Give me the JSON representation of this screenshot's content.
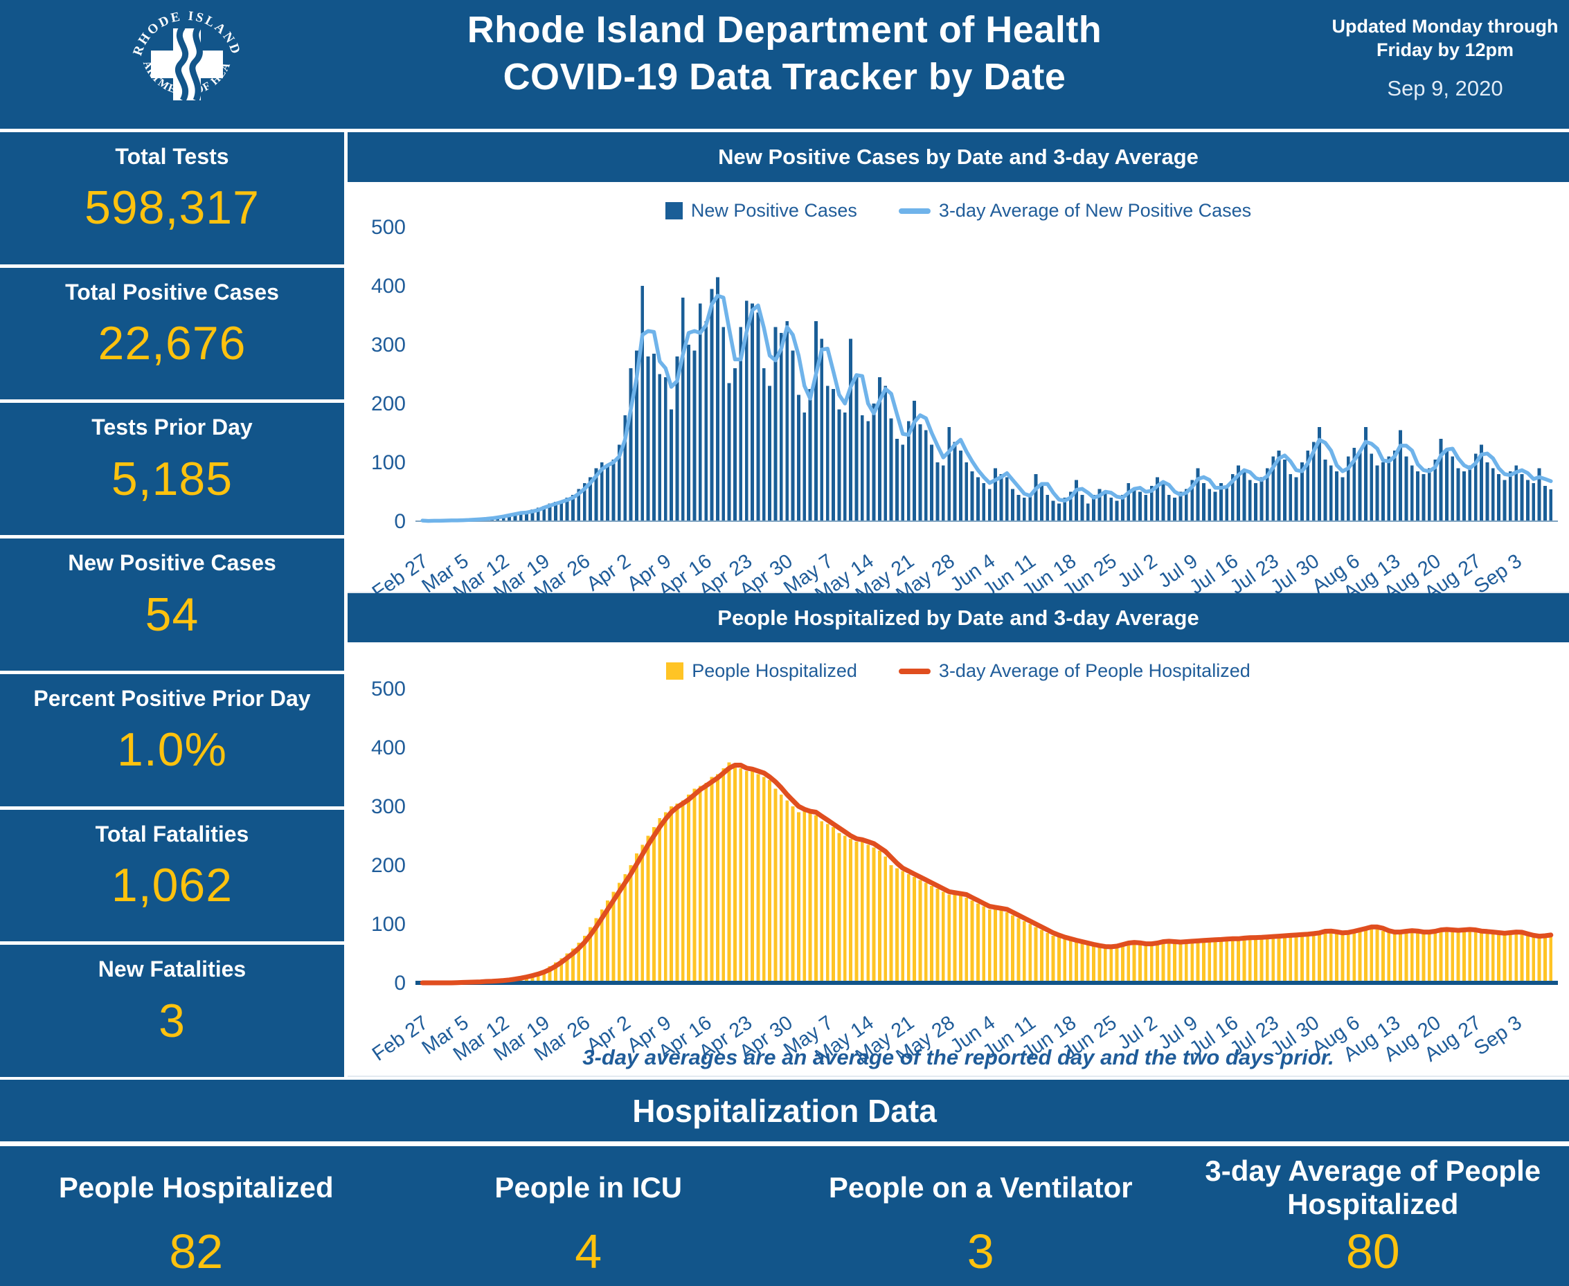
{
  "header": {
    "title_line1": "Rhode Island Department of Health",
    "title_line2": "COVID-19 Data Tracker by Date",
    "updated_note": "Updated Monday through Friday by 12pm",
    "date": "Sep 9, 2020",
    "logo": {
      "ring_top": "RHODE ISLAND",
      "ring_bottom": "DEPARTMENT OF HEALTH"
    }
  },
  "sidebar": {
    "cards": [
      {
        "label": "Total Tests",
        "value": "598,317"
      },
      {
        "label": "Total Positive Cases",
        "value": "22,676"
      },
      {
        "label": "Tests Prior Day",
        "value": "5,185"
      },
      {
        "label": "New Positive Cases",
        "value": "54"
      },
      {
        "label": "Percent Positive Prior Day",
        "value": "1.0%"
      },
      {
        "label": "Total Fatalities",
        "value": "1,062"
      },
      {
        "label": "New Fatalities",
        "value": "3"
      }
    ]
  },
  "chart_data": [
    {
      "type": "bar",
      "title": "New Positive Cases by Date and 3-day Average",
      "ylim": [
        0,
        500
      ],
      "yticks": [
        0,
        100,
        200,
        300,
        400,
        500
      ],
      "grid": false,
      "legend_position": "top-center",
      "x_tick_interval_days": 7,
      "x_tick_labels": [
        "Feb 27",
        "Mar 5",
        "Mar 12",
        "Mar 19",
        "Mar 26",
        "Apr 2",
        "Apr 9",
        "Apr 16",
        "Apr 23",
        "Apr 30",
        "May 7",
        "May 14",
        "May 21",
        "May 28",
        "Jun 4",
        "Jun 11",
        "Jun 18",
        "Jun 25",
        "Jul 2",
        "Jul 9",
        "Jul 16",
        "Jul 23",
        "Jul 30",
        "Aug 6",
        "Aug 13",
        "Aug 20",
        "Aug 27",
        "Sep 3"
      ],
      "axis_text_color": "#1F5C99",
      "baseline": {
        "color": "#7FA3C0",
        "width": 2
      },
      "series": [
        {
          "name": "New Positive Cases",
          "type": "bar",
          "color": "#1A5E97",
          "values": [
            1,
            0,
            1,
            1,
            1,
            2,
            1,
            2,
            3,
            3,
            4,
            5,
            6,
            8,
            10,
            12,
            14,
            16,
            14,
            20,
            23,
            26,
            30,
            33,
            35,
            40,
            45,
            55,
            65,
            75,
            90,
            100,
            95,
            105,
            130,
            180,
            260,
            290,
            400,
            280,
            285,
            250,
            245,
            190,
            280,
            380,
            300,
            290,
            370,
            340,
            395,
            415,
            330,
            235,
            260,
            330,
            375,
            370,
            355,
            260,
            230,
            330,
            320,
            340,
            290,
            215,
            185,
            225,
            340,
            310,
            230,
            225,
            190,
            185,
            310,
            250,
            180,
            170,
            200,
            245,
            230,
            175,
            140,
            130,
            170,
            205,
            165,
            155,
            130,
            100,
            95,
            160,
            135,
            120,
            100,
            85,
            75,
            65,
            55,
            90,
            80,
            75,
            55,
            45,
            40,
            45,
            80,
            65,
            45,
            35,
            30,
            40,
            50,
            70,
            45,
            30,
            45,
            55,
            50,
            40,
            35,
            45,
            65,
            55,
            50,
            45,
            60,
            75,
            65,
            45,
            40,
            50,
            55,
            70,
            90,
            65,
            55,
            50,
            65,
            60,
            80,
            95,
            85,
            70,
            65,
            75,
            90,
            110,
            120,
            105,
            80,
            75,
            100,
            120,
            135,
            160,
            105,
            95,
            85,
            75,
            110,
            125,
            120,
            160,
            115,
            95,
            100,
            110,
            120,
            155,
            110,
            95,
            85,
            80,
            90,
            105,
            140,
            120,
            110,
            90,
            85,
            95,
            115,
            130,
            100,
            90,
            80,
            70,
            85,
            95,
            80,
            70,
            65,
            90,
            60,
            54
          ]
        },
        {
          "name": "3-day Average of New Positive Cases",
          "type": "line",
          "color": "#6FB3EA",
          "width": 5.5,
          "derivation": "average of the reported day and the two days prior"
        }
      ]
    },
    {
      "type": "bar",
      "title": "People Hospitalized by Date and 3-day Average",
      "ylim": [
        0,
        500
      ],
      "yticks": [
        0,
        100,
        200,
        300,
        400,
        500
      ],
      "grid": false,
      "legend_position": "top-center",
      "x_tick_interval_days": 7,
      "x_tick_labels": [
        "Feb 27",
        "Mar 5",
        "Mar 12",
        "Mar 19",
        "Mar 26",
        "Apr 2",
        "Apr 9",
        "Apr 16",
        "Apr 23",
        "Apr 30",
        "May 7",
        "May 14",
        "May 21",
        "May 28",
        "Jun 4",
        "Jun 11",
        "Jun 18",
        "Jun 25",
        "Jul 2",
        "Jul 9",
        "Jul 16",
        "Jul 23",
        "Jul 30",
        "Aug 6",
        "Aug 13",
        "Aug 20",
        "Aug 27",
        "Sep 3"
      ],
      "axis_text_color": "#1F5C99",
      "baseline": {
        "color": "#12558A",
        "width": 6
      },
      "series": [
        {
          "name": "People Hospitalized",
          "type": "bar",
          "color": "#FFC425",
          "values": [
            0,
            0,
            0,
            0,
            0,
            0,
            1,
            1,
            1,
            2,
            2,
            3,
            3,
            4,
            5,
            6,
            8,
            10,
            12,
            15,
            18,
            22,
            28,
            35,
            42,
            50,
            58,
            68,
            80,
            95,
            110,
            125,
            140,
            155,
            170,
            185,
            200,
            220,
            235,
            250,
            265,
            280,
            290,
            300,
            305,
            310,
            320,
            330,
            335,
            340,
            350,
            355,
            365,
            375,
            370,
            365,
            360,
            365,
            355,
            350,
            345,
            330,
            320,
            310,
            300,
            290,
            295,
            290,
            285,
            275,
            270,
            265,
            255,
            250,
            245,
            240,
            245,
            235,
            230,
            225,
            215,
            200,
            195,
            190,
            185,
            180,
            175,
            170,
            165,
            160,
            155,
            150,
            155,
            150,
            145,
            140,
            135,
            130,
            125,
            130,
            125,
            120,
            115,
            110,
            105,
            100,
            95,
            90,
            85,
            80,
            78,
            75,
            72,
            70,
            68,
            65,
            63,
            62,
            60,
            62,
            65,
            68,
            70,
            68,
            66,
            65,
            68,
            70,
            72,
            70,
            68,
            70,
            72,
            70,
            72,
            74,
            72,
            74,
            75,
            74,
            76,
            75,
            77,
            78,
            76,
            78,
            80,
            78,
            80,
            82,
            80,
            82,
            84,
            82,
            85,
            88,
            90,
            86,
            84,
            85,
            88,
            90,
            92,
            95,
            98,
            92,
            88,
            86,
            85,
            88,
            90,
            88,
            86,
            85,
            88,
            90,
            92,
            90,
            88,
            90,
            92,
            90,
            88,
            86,
            88,
            85,
            83,
            85,
            88,
            86,
            84,
            80,
            78,
            80,
            82,
            82
          ]
        },
        {
          "name": "3-day Average of People Hospitalized",
          "type": "line",
          "color": "#E04E1F",
          "width": 7,
          "derivation": "average of the reported day and the two days prior"
        }
      ]
    }
  ],
  "footnote": "3-day averages are an average of the reported day and the two days prior.",
  "hospitalization": {
    "banner": "Hospitalization Data",
    "stats": [
      {
        "label": "People Hospitalized",
        "value": "82"
      },
      {
        "label": "People in ICU",
        "value": "4"
      },
      {
        "label": "People on a Ventilator",
        "value": "3"
      },
      {
        "label": "3-day Average of People Hospitalized",
        "value": "80"
      }
    ]
  },
  "colors": {
    "panel_blue": "#12558A",
    "kpi_gold": "#FFC20E",
    "case_bar_blue": "#1A5E97",
    "case_avg_line_blue": "#6FB3EA",
    "hosp_bar_gold": "#FFC425",
    "hosp_avg_line_red": "#E04E1F",
    "axis_text_blue": "#1F5C99"
  }
}
